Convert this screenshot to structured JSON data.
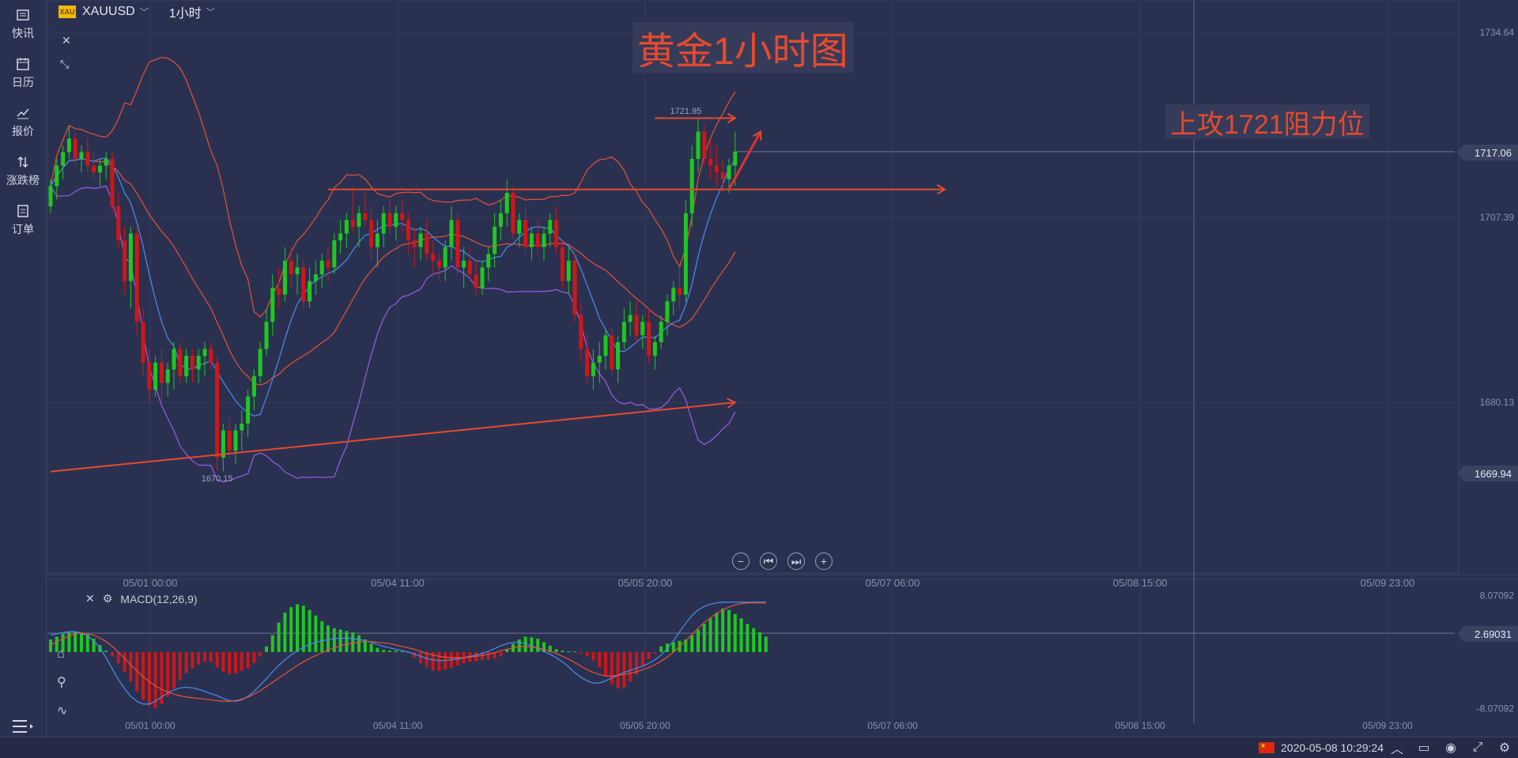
{
  "sidebar": {
    "items": [
      {
        "label": "快讯",
        "icon": "news-icon"
      },
      {
        "label": "日历",
        "icon": "calendar-icon"
      },
      {
        "label": "报价",
        "icon": "quote-icon"
      },
      {
        "label": "涨跌榜",
        "icon": "updown-icon"
      },
      {
        "label": "订单",
        "icon": "order-icon"
      }
    ]
  },
  "toolbar": {
    "badge": "XAU",
    "symbol": "XAUUSD",
    "timeframe": "1小时"
  },
  "annotations": {
    "title": "黄金1小时图",
    "note": "上攻1721阻力位",
    "high_label": "1721.95",
    "low_label": "1670.15"
  },
  "price_tags": {
    "last": "1717.06",
    "support": "1669.94",
    "macd_value": "2.69031"
  },
  "macd": {
    "label": "MACD(12,26,9)"
  },
  "status": {
    "datetime": "2020-05-08 10:29:24"
  },
  "colors": {
    "background": "#2a3150",
    "up": "#1fc81f",
    "down": "#d01616",
    "trendline": "#e64a2e",
    "bb_mid": "#e8513a",
    "bb_upper": "#e8513a",
    "ma_fast": "#4a8df0",
    "bb_lower": "#9a5ce6"
  },
  "chart_data": [
    {
      "type": "line",
      "title": "黄金1小时图",
      "subtitle": "",
      "x_ticks": [
        "05/01 00:00",
        "05/04 11:00",
        "05/05 20:00",
        "05/07 06:00",
        "05/08 15:00",
        "05/09 23:00"
      ],
      "y_ticks": [
        1734.64,
        1707.39,
        1680.13
      ],
      "ylim": [
        1655,
        1738
      ],
      "candles": [
        [
          1709,
          1713,
          1708,
          1712
        ],
        [
          1712,
          1716,
          1710,
          1715
        ],
        [
          1715,
          1718,
          1713,
          1717
        ],
        [
          1717,
          1721,
          1716,
          1719
        ],
        [
          1719,
          1720,
          1715,
          1716
        ],
        [
          1716,
          1718,
          1714,
          1717
        ],
        [
          1717,
          1719,
          1714,
          1715
        ],
        [
          1715,
          1717,
          1713,
          1714
        ],
        [
          1714,
          1716,
          1712,
          1715
        ],
        [
          1715,
          1717,
          1713,
          1716
        ],
        [
          1716,
          1717,
          1708,
          1709
        ],
        [
          1709,
          1711,
          1703,
          1704
        ],
        [
          1704,
          1706,
          1696,
          1698
        ],
        [
          1698,
          1706,
          1694,
          1705
        ],
        [
          1705,
          1706,
          1690,
          1692
        ],
        [
          1692,
          1694,
          1684,
          1686
        ],
        [
          1686,
          1688,
          1680,
          1682
        ],
        [
          1682,
          1687,
          1681,
          1686
        ],
        [
          1686,
          1688,
          1680,
          1683
        ],
        [
          1683,
          1686,
          1681,
          1685
        ],
        [
          1685,
          1689,
          1682,
          1688
        ],
        [
          1688,
          1689,
          1683,
          1684
        ],
        [
          1684,
          1688,
          1683,
          1687
        ],
        [
          1687,
          1688,
          1683,
          1685
        ],
        [
          1685,
          1688,
          1683,
          1687
        ],
        [
          1687,
          1689,
          1684,
          1688
        ],
        [
          1688,
          1689,
          1685,
          1686
        ],
        [
          1686,
          1687,
          1670,
          1672
        ],
        [
          1672,
          1677,
          1670,
          1676
        ],
        [
          1676,
          1678,
          1672,
          1673
        ],
        [
          1673,
          1677,
          1671,
          1676
        ],
        [
          1676,
          1679,
          1673,
          1677
        ],
        [
          1677,
          1682,
          1675,
          1681
        ],
        [
          1681,
          1685,
          1679,
          1684
        ],
        [
          1684,
          1689,
          1683,
          1688
        ],
        [
          1688,
          1694,
          1687,
          1692
        ],
        [
          1692,
          1699,
          1690,
          1697
        ],
        [
          1697,
          1700,
          1694,
          1696
        ],
        [
          1696,
          1703,
          1695,
          1701
        ],
        [
          1701,
          1703,
          1697,
          1699
        ],
        [
          1699,
          1702,
          1696,
          1700
        ],
        [
          1700,
          1701,
          1694,
          1695
        ],
        [
          1695,
          1700,
          1694,
          1698
        ],
        [
          1698,
          1701,
          1696,
          1699
        ],
        [
          1699,
          1702,
          1697,
          1701
        ],
        [
          1701,
          1703,
          1698,
          1700
        ],
        [
          1700,
          1705,
          1699,
          1704
        ],
        [
          1704,
          1707,
          1702,
          1705
        ],
        [
          1705,
          1708,
          1703,
          1707
        ],
        [
          1707,
          1712,
          1705,
          1706
        ],
        [
          1706,
          1709,
          1703,
          1708
        ],
        [
          1708,
          1711,
          1706,
          1707
        ],
        [
          1707,
          1709,
          1701,
          1703
        ],
        [
          1703,
          1707,
          1700,
          1705
        ],
        [
          1705,
          1709,
          1703,
          1708
        ],
        [
          1708,
          1710,
          1705,
          1706
        ],
        [
          1706,
          1709,
          1704,
          1708
        ],
        [
          1708,
          1710,
          1705,
          1707
        ],
        [
          1707,
          1708,
          1702,
          1704
        ],
        [
          1704,
          1706,
          1700,
          1703
        ],
        [
          1703,
          1706,
          1701,
          1705
        ],
        [
          1705,
          1707,
          1701,
          1702
        ],
        [
          1702,
          1704,
          1699,
          1701
        ],
        [
          1701,
          1702,
          1698,
          1700
        ],
        [
          1700,
          1704,
          1698,
          1703
        ],
        [
          1703,
          1709,
          1701,
          1707
        ],
        [
          1707,
          1708,
          1699,
          1700
        ],
        [
          1700,
          1703,
          1697,
          1701
        ],
        [
          1701,
          1703,
          1698,
          1699
        ],
        [
          1699,
          1701,
          1696,
          1697
        ],
        [
          1697,
          1701,
          1696,
          1700
        ],
        [
          1700,
          1703,
          1698,
          1702
        ],
        [
          1702,
          1708,
          1700,
          1706
        ],
        [
          1706,
          1710,
          1704,
          1708
        ],
        [
          1708,
          1713,
          1706,
          1711
        ],
        [
          1711,
          1712,
          1704,
          1705
        ],
        [
          1705,
          1708,
          1703,
          1707
        ],
        [
          1707,
          1709,
          1702,
          1703
        ],
        [
          1703,
          1706,
          1701,
          1705
        ],
        [
          1705,
          1707,
          1702,
          1703
        ],
        [
          1703,
          1706,
          1701,
          1705
        ],
        [
          1705,
          1708,
          1703,
          1707
        ],
        [
          1707,
          1709,
          1702,
          1703
        ],
        [
          1703,
          1704,
          1697,
          1698
        ],
        [
          1698,
          1703,
          1696,
          1701
        ],
        [
          1701,
          1702,
          1692,
          1693
        ],
        [
          1693,
          1695,
          1686,
          1688
        ],
        [
          1688,
          1690,
          1683,
          1684
        ],
        [
          1684,
          1688,
          1682,
          1686
        ],
        [
          1686,
          1689,
          1683,
          1687
        ],
        [
          1687,
          1691,
          1685,
          1690
        ],
        [
          1690,
          1691,
          1684,
          1685
        ],
        [
          1685,
          1690,
          1683,
          1689
        ],
        [
          1689,
          1694,
          1688,
          1692
        ],
        [
          1692,
          1695,
          1690,
          1693
        ],
        [
          1693,
          1695,
          1689,
          1690
        ],
        [
          1690,
          1693,
          1688,
          1692
        ],
        [
          1692,
          1694,
          1686,
          1687
        ],
        [
          1687,
          1690,
          1685,
          1689
        ],
        [
          1689,
          1693,
          1688,
          1692
        ],
        [
          1692,
          1696,
          1690,
          1695
        ],
        [
          1695,
          1698,
          1693,
          1697
        ],
        [
          1697,
          1700,
          1694,
          1696
        ],
        [
          1696,
          1710,
          1695,
          1708
        ],
        [
          1708,
          1718,
          1706,
          1716
        ],
        [
          1716,
          1721.95,
          1714,
          1720
        ],
        [
          1720,
          1721,
          1715,
          1716
        ],
        [
          1716,
          1719,
          1713,
          1715
        ],
        [
          1715,
          1718,
          1712,
          1714
        ],
        [
          1714,
          1716,
          1711,
          1713
        ],
        [
          1713,
          1716,
          1711,
          1715
        ],
        [
          1715,
          1720,
          1712,
          1717.06
        ]
      ],
      "series": [
        {
          "name": "",
          "values": []
        }
      ],
      "trendlines": [
        {
          "from": [
            0,
            1669.94
          ],
          "to": [
            111,
            1680.13
          ],
          "color": "#e64a2e",
          "arrow": true
        },
        {
          "from": [
            45,
            1711.5
          ],
          "to": [
            145,
            1711.5
          ],
          "color": "#e64a2e",
          "arrow": true
        },
        {
          "from": [
            98,
            1722
          ],
          "to": [
            111,
            1722
          ],
          "color": "#e64a2e",
          "arrow": true
        }
      ]
    },
    {
      "type": "bar",
      "title": "MACD(12,26,9)",
      "y_ticks": [
        8.07092,
        2.69031,
        -8.07092
      ],
      "ylim": [
        -9,
        9
      ],
      "x_ticks": [
        "05/01 00:00",
        "05/04 11:00",
        "05/05 20:00",
        "05/07 06:00",
        "05/08 15:00",
        "05/09 23:00"
      ],
      "histogram": [
        1.8,
        2.2,
        2.6,
        2.8,
        2.9,
        2.8,
        2.5,
        1.9,
        1.0,
        0.2,
        -0.6,
        -1.6,
        -2.8,
        -4.2,
        -5.6,
        -6.8,
        -7.6,
        -7.9,
        -7.4,
        -6.4,
        -5.2,
        -4.0,
        -3.0,
        -2.3,
        -1.8,
        -1.4,
        -1.4,
        -2.2,
        -2.8,
        -3.1,
        -3.0,
        -2.7,
        -2.3,
        -1.6,
        -0.6,
        0.8,
        2.4,
        4.2,
        5.6,
        6.4,
        6.8,
        6.6,
        6.0,
        5.2,
        4.4,
        3.8,
        3.4,
        3.2,
        3.0,
        2.8,
        2.4,
        1.8,
        1.2,
        0.6,
        0.3,
        0.2,
        0.2,
        0.1,
        -0.1,
        -0.8,
        -1.6,
        -2.2,
        -2.6,
        -2.7,
        -2.5,
        -2.2,
        -1.9,
        -1.6,
        -1.4,
        -1.3,
        -1.2,
        -1.1,
        -0.9,
        -0.6,
        0.4,
        1.2,
        1.8,
        2.2,
        2.1,
        1.9,
        1.4,
        0.9,
        0.4,
        0.2,
        0.1,
        0.1,
        -0.2,
        -0.6,
        -1.2,
        -2.2,
        -3.4,
        -4.6,
        -5.2,
        -5.0,
        -4.2,
        -3.2,
        -2.0,
        -1.0,
        -0.2,
        0.8,
        1.2,
        1.4,
        1.6,
        1.8,
        2.4,
        3.2,
        4.0,
        4.8,
        5.6,
        6.2,
        6.0,
        5.4,
        4.8,
        4.0,
        3.4,
        2.8,
        2.2
      ],
      "series": [
        {
          "name": "DIF",
          "values": [
            2.4,
            2.6,
            2.8,
            2.9,
            2.9,
            2.7,
            2.3,
            1.6,
            0.6,
            -0.8,
            -2.4,
            -3.9,
            -5.2,
            -6.3,
            -7.0,
            -7.4,
            -7.4,
            -7.0,
            -6.4,
            -5.8,
            -5.4,
            -5.1,
            -5.0,
            -5.1,
            -5.3,
            -5.6,
            -5.9,
            -6.2,
            -6.6,
            -6.9,
            -7.0,
            -6.8,
            -6.3,
            -5.6,
            -4.7,
            -3.8,
            -2.8,
            -1.9,
            -1.1,
            -0.4,
            0.2,
            0.7,
            1.1,
            1.4,
            1.6,
            1.8,
            1.9,
            2.0,
            2.0,
            1.9,
            1.8,
            1.6,
            1.4,
            1.1,
            0.8,
            0.6,
            0.4,
            0.2,
            0.0,
            -0.3,
            -0.6,
            -0.9,
            -1.1,
            -1.2,
            -1.2,
            -1.1,
            -1.0,
            -0.8,
            -0.6,
            -0.4,
            -0.2,
            0.1,
            0.5,
            0.9,
            1.2,
            1.4,
            1.4,
            1.2,
            0.9,
            0.5,
            0.1,
            -0.3,
            -0.8,
            -1.4,
            -2.1,
            -2.9,
            -3.6,
            -4.1,
            -4.4,
            -4.4,
            -4.1,
            -3.7,
            -3.3,
            -2.9,
            -2.6,
            -2.3,
            -2.0,
            -1.6,
            -1.1,
            -0.4,
            0.5,
            1.6,
            2.9,
            4.1,
            5.2,
            6.0,
            6.5,
            6.8,
            7.0,
            7.1,
            7.1,
            7.1,
            7.1,
            7.1,
            7.1,
            7.1,
            7.1
          ]
        },
        {
          "name": "DEA",
          "values": [
            1.0,
            1.5,
            1.9,
            2.3,
            2.6,
            2.7,
            2.6,
            2.4,
            2.0,
            1.5,
            0.8,
            0.0,
            -0.9,
            -1.8,
            -2.7,
            -3.5,
            -4.2,
            -4.8,
            -5.3,
            -5.7,
            -6.0,
            -6.2,
            -6.4,
            -6.5,
            -6.6,
            -6.7,
            -6.8,
            -6.9,
            -7.0,
            -7.0,
            -6.9,
            -6.7,
            -6.4,
            -6.0,
            -5.5,
            -4.9,
            -4.3,
            -3.7,
            -3.1,
            -2.5,
            -1.9,
            -1.4,
            -0.9,
            -0.5,
            -0.1,
            0.3,
            0.6,
            0.9,
            1.1,
            1.3,
            1.4,
            1.5,
            1.5,
            1.4,
            1.3,
            1.2,
            1.0,
            0.8,
            0.6,
            0.4,
            0.1,
            -0.2,
            -0.4,
            -0.6,
            -0.7,
            -0.8,
            -0.8,
            -0.8,
            -0.7,
            -0.6,
            -0.5,
            -0.3,
            -0.1,
            0.2,
            0.4,
            0.6,
            0.8,
            0.8,
            0.7,
            0.6,
            0.4,
            0.1,
            -0.2,
            -0.6,
            -1.0,
            -1.5,
            -2.0,
            -2.5,
            -2.9,
            -3.2,
            -3.4,
            -3.4,
            -3.3,
            -3.2,
            -3.0,
            -2.8,
            -2.5,
            -2.2,
            -1.8,
            -1.3,
            -0.7,
            0.0,
            0.8,
            1.6,
            2.5,
            3.4,
            4.2,
            4.9,
            5.5,
            6.0,
            6.4,
            6.7,
            6.9,
            7.0,
            7.0,
            7.0,
            7.0
          ]
        }
      ]
    }
  ]
}
